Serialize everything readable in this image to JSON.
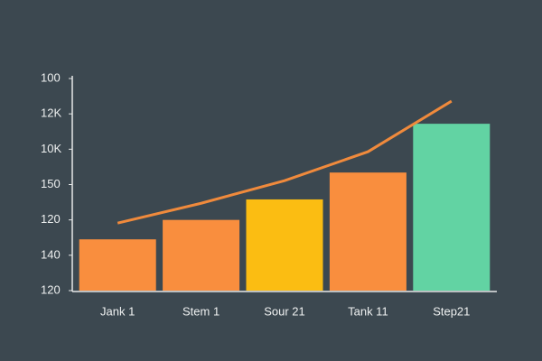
{
  "chart_data": {
    "type": "bar",
    "categories": [
      "Jank 1",
      "Stem 1",
      "Sour 21",
      "Tank 11",
      "Step21"
    ],
    "values": [
      1.45,
      2.0,
      2.58,
      3.34,
      4.72
    ],
    "colors": [
      "#f98e3e",
      "#f98e3e",
      "#fbbd12",
      "#f98e3e",
      "#62d3a3"
    ],
    "line_values": [
      1.91,
      2.47,
      3.11,
      3.93,
      5.36
    ],
    "line_color": "#f08a3c",
    "ylim": [
      0,
      6
    ],
    "yticks": [
      {
        "value": 0,
        "label": "120"
      },
      {
        "value": 1,
        "label": "140"
      },
      {
        "value": 2,
        "label": "120"
      },
      {
        "value": 3,
        "label": "150"
      },
      {
        "value": 4,
        "label": "10K"
      },
      {
        "value": 5,
        "label": "12K"
      },
      {
        "value": 6,
        "label": "100"
      }
    ]
  }
}
